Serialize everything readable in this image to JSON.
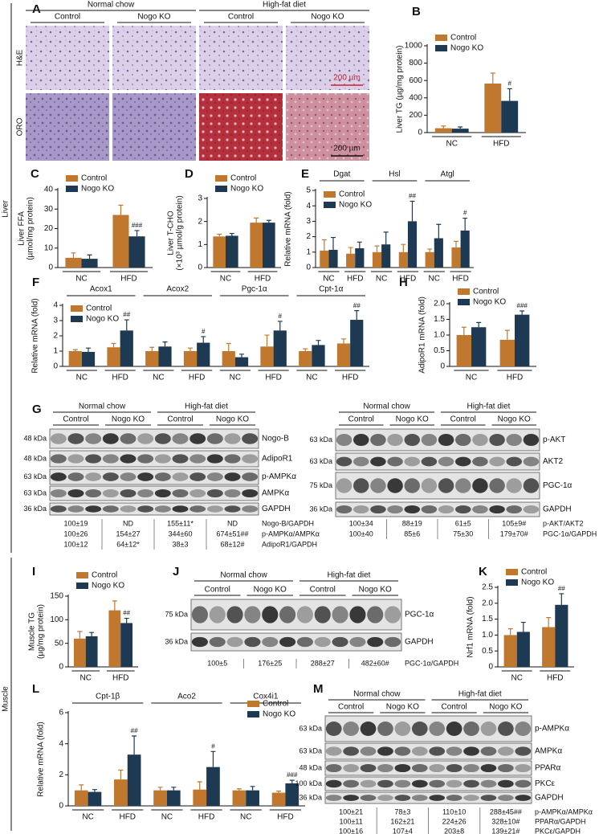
{
  "sections": [
    "Liver",
    "Muscle"
  ],
  "histology": {
    "label": "A",
    "groups": [
      "Normal chow",
      "High-fat diet"
    ],
    "conditions": [
      "Control",
      "Nogo KO",
      "Control",
      "Nogo KO"
    ],
    "rows": [
      "H&E",
      "ORO"
    ],
    "scale_bars": [
      "200 µm",
      "200 µm"
    ]
  },
  "chart_data": [
    {
      "type": "bar",
      "label": "B",
      "ylabel": [
        "Liver TG (µg/mg protein)"
      ],
      "categories": [
        "NC",
        "HFD"
      ],
      "series": [
        {
          "name": "Control",
          "color": "#c0782e",
          "values": [
            50,
            565
          ],
          "errors": [
            25,
            120
          ],
          "significance": [
            null,
            null
          ]
        },
        {
          "name": "Nogo KO",
          "color": "#1e3a52",
          "values": [
            45,
            365
          ],
          "errors": [
            20,
            140
          ],
          "significance": [
            null,
            "#"
          ]
        }
      ],
      "ylim": [
        0,
        1000
      ],
      "yticks": [
        0,
        200,
        400,
        600,
        800,
        1000
      ],
      "legend": "upper left"
    },
    {
      "type": "bar",
      "label": "C",
      "ylabel": [
        "Liver FFA",
        "(µmol/mg protein)"
      ],
      "categories": [
        "NC",
        "HFD"
      ],
      "series": [
        {
          "name": "Control",
          "color": "#c0782e",
          "values": [
            5,
            27
          ],
          "errors": [
            2.5,
            5
          ],
          "significance": [
            null,
            null
          ]
        },
        {
          "name": "Nogo KO",
          "color": "#1e3a52",
          "values": [
            4.5,
            16
          ],
          "errors": [
            2,
            3
          ],
          "significance": [
            null,
            "###"
          ]
        }
      ],
      "ylim": [
        0,
        40
      ],
      "yticks": [
        0,
        10,
        20,
        30,
        40
      ],
      "legend": "upper left"
    },
    {
      "type": "bar",
      "label": "D",
      "ylabel": [
        "Liver T-CHO",
        "(×10³ µmol/g protein)"
      ],
      "categories": [
        "NC",
        "HFD"
      ],
      "series": [
        {
          "name": "Control",
          "color": "#c0782e",
          "values": [
            1.35,
            1.95
          ],
          "errors": [
            0.1,
            0.2
          ],
          "significance": [
            null,
            null
          ]
        },
        {
          "name": "Nogo KO",
          "color": "#1e3a52",
          "values": [
            1.38,
            1.95
          ],
          "errors": [
            0.1,
            0.1
          ],
          "significance": [
            null,
            null
          ]
        }
      ],
      "ylim": [
        0,
        3
      ],
      "yticks": [
        0,
        1,
        2,
        3
      ],
      "legend": "upper left"
    },
    {
      "type": "bar",
      "label": "E",
      "ylabel": [
        "Relative mRNA (fold)"
      ],
      "groups": [
        "Dgat",
        "Hsl",
        "Atgl"
      ],
      "categories": [
        "NC",
        "HFD",
        "NC",
        "HFD",
        "NC",
        "HFD"
      ],
      "series": [
        {
          "name": "Control",
          "color": "#c0782e",
          "values": [
            1.1,
            0.9,
            1.0,
            1.0,
            1.0,
            1.3
          ],
          "errors": [
            0.7,
            0.4,
            0.4,
            0.5,
            0.2,
            0.4
          ],
          "significance": [
            null,
            null,
            null,
            null,
            null,
            null
          ]
        },
        {
          "name": "Nogo KO",
          "color": "#1e3a52",
          "values": [
            1.15,
            1.25,
            1.5,
            3.0,
            1.9,
            2.4
          ],
          "errors": [
            0.8,
            0.4,
            0.8,
            1.3,
            0.9,
            0.8
          ],
          "significance": [
            null,
            null,
            null,
            "##",
            null,
            "#"
          ]
        }
      ],
      "ylim": [
        0,
        5
      ],
      "yticks": [
        0,
        1,
        2,
        3,
        4,
        5
      ],
      "legend": "upper left"
    },
    {
      "type": "bar",
      "label": "F",
      "ylabel": [
        "Relative mRNA (fold)"
      ],
      "groups": [
        "Acox1",
        "Acox2",
        "Pgc-1α",
        "Cpt-1α"
      ],
      "categories": [
        "NC",
        "HFD",
        "NC",
        "HFD",
        "NC",
        "HFD",
        "NC",
        "HFD"
      ],
      "series": [
        {
          "name": "Control",
          "color": "#c0782e",
          "values": [
            1.0,
            1.25,
            1.0,
            1.0,
            1.0,
            1.3,
            1.0,
            1.5
          ],
          "errors": [
            0.1,
            0.25,
            0.25,
            0.2,
            0.5,
            0.75,
            0.15,
            0.3
          ],
          "significance": [
            null,
            null,
            null,
            null,
            null,
            null,
            null,
            null
          ]
        },
        {
          "name": "Nogo KO",
          "color": "#1e3a52",
          "values": [
            0.95,
            2.35,
            1.3,
            1.55,
            0.6,
            2.35,
            1.4,
            3.05
          ],
          "errors": [
            0.25,
            0.7,
            0.3,
            0.4,
            0.2,
            0.6,
            0.3,
            0.6
          ],
          "significance": [
            null,
            "##",
            null,
            "#",
            null,
            "#",
            null,
            "##"
          ]
        }
      ],
      "ylim": [
        0,
        4
      ],
      "yticks": [
        0,
        1,
        2,
        3,
        4
      ],
      "legend": "upper left"
    },
    {
      "type": "bar",
      "label": "H",
      "ylabel": [
        "AdipoR1 mRNA (fold)"
      ],
      "categories": [
        "NC",
        "HFD"
      ],
      "series": [
        {
          "name": "Control",
          "color": "#c0782e",
          "values": [
            1.0,
            0.85
          ],
          "errors": [
            0.25,
            0.3
          ],
          "significance": [
            null,
            null
          ]
        },
        {
          "name": "Nogo KO",
          "color": "#1e3a52",
          "values": [
            1.25,
            1.65
          ],
          "errors": [
            0.15,
            0.12
          ],
          "significance": [
            null,
            "###"
          ]
        }
      ],
      "ylim": [
        0,
        2
      ],
      "yticks": [
        0,
        0.5,
        {
          "value": 1,
          "label": "1.0"
        },
        1.5,
        {
          "value": 2,
          "label": "2.0"
        }
      ],
      "legend": "upper left"
    },
    {
      "type": "bar",
      "label": "I",
      "ylabel": [
        "Muscle TG",
        "(µg/mg protein)"
      ],
      "categories": [
        "NC",
        "HFD"
      ],
      "series": [
        {
          "name": "Control",
          "color": "#c0782e",
          "values": [
            60,
            120
          ],
          "errors": [
            15,
            20
          ],
          "significance": [
            null,
            null
          ]
        },
        {
          "name": "Nogo KO",
          "color": "#1e3a52",
          "values": [
            65,
            93
          ],
          "errors": [
            8,
            10
          ],
          "significance": [
            null,
            "##"
          ]
        }
      ],
      "ylim": [
        0,
        150
      ],
      "yticks": [
        0,
        50,
        100,
        150
      ],
      "legend": "upper left"
    },
    {
      "type": "bar",
      "label": "K",
      "ylabel": [
        "Nrf1 mRNA (fold)"
      ],
      "categories": [
        "NC",
        "HFD"
      ],
      "series": [
        {
          "name": "Control",
          "color": "#c0782e",
          "values": [
            1.0,
            1.25
          ],
          "errors": [
            0.2,
            0.3
          ],
          "significance": [
            null,
            null
          ]
        },
        {
          "name": "Nogo KO",
          "color": "#1e3a52",
          "values": [
            1.1,
            1.95
          ],
          "errors": [
            0.3,
            0.35
          ],
          "significance": [
            null,
            "##"
          ]
        }
      ],
      "ylim": [
        0,
        2.5
      ],
      "yticks": [
        0,
        0.5,
        {
          "value": 1,
          "label": "1.0"
        },
        1.5,
        {
          "value": 2,
          "label": "2.0"
        },
        2.5
      ],
      "legend": "upper left"
    },
    {
      "type": "bar",
      "label": "L",
      "ylabel": [
        "Relative mRNA (fold)"
      ],
      "groups": [
        "Cpt-1β",
        "Aco2",
        "Cox4i1"
      ],
      "categories": [
        "NC",
        "HFD",
        "NC",
        "HFD",
        "NC",
        "HFD"
      ],
      "series": [
        {
          "name": "Control",
          "color": "#c0782e",
          "values": [
            1.0,
            1.7,
            1.0,
            1.05,
            1.0,
            0.85
          ],
          "errors": [
            0.35,
            0.6,
            0.2,
            0.5,
            0.1,
            0.1
          ],
          "significance": [
            null,
            null,
            null,
            null,
            null,
            null
          ]
        },
        {
          "name": "Nogo KO",
          "color": "#1e3a52",
          "values": [
            0.9,
            3.3,
            1.0,
            2.5,
            1.0,
            1.45
          ],
          "errors": [
            0.15,
            1.2,
            0.2,
            1.0,
            0.25,
            0.2
          ],
          "significance": [
            null,
            "##",
            null,
            "#",
            null,
            "###"
          ]
        }
      ],
      "ylim": [
        0,
        6
      ],
      "yticks": [
        0,
        2,
        4,
        6
      ],
      "legend": "upper right"
    }
  ],
  "blots": [
    {
      "label": "G",
      "groups": [
        "Normal chow",
        "High-fat diet"
      ],
      "conditions": [
        "Control",
        "Nogo KO",
        "Control",
        "Nogo KO"
      ],
      "rows": [
        {
          "kda": "48 kDa",
          "name": "Nogo-B"
        },
        {
          "kda": "48 kDa",
          "name": "AdipoR1"
        },
        {
          "kda": "63 kDa",
          "name": "p-AMPKα"
        },
        {
          "kda": "63 kDa",
          "name": "AMPKα"
        },
        {
          "kda": "36 kDa",
          "name": "GAPDH"
        }
      ],
      "quant": [
        {
          "values": [
            "100±19",
            "ND",
            "155±11*",
            "ND"
          ],
          "name": "Nogo-B/GAPDH"
        },
        {
          "values": [
            "100±26",
            "154±27",
            "344±60",
            "674±51##"
          ],
          "name": "p-AMPKα/AMPKα"
        },
        {
          "values": [
            "100±12",
            "64±12*",
            "38±3",
            "68±12#"
          ],
          "name": "AdipoR1/GAPDH"
        }
      ]
    },
    {
      "groups": [
        "Normal chow",
        "High-fat diet"
      ],
      "conditions": [
        "Control",
        "Nogo KO",
        "Control",
        "Nogo KO"
      ],
      "rows": [
        {
          "kda": "63 kDa",
          "name": "p-AKT"
        },
        {
          "kda": "63 kDa",
          "name": "AKT2"
        },
        {
          "kda": "75 kDa",
          "name": "PGC-1α"
        },
        {
          "kda": "36 kDa",
          "name": "GAPDH"
        }
      ],
      "quant": [
        {
          "values": [
            "100±34",
            "88±19",
            "61±5",
            "105±9#"
          ],
          "name": "p-AKT/AKT2"
        },
        {
          "values": [
            "100±40",
            "85±6",
            "75±30",
            "179±70#"
          ],
          "name": "PGC-1α/GAPDH"
        }
      ]
    },
    {
      "label": "J",
      "groups": [
        "Normal chow",
        "High-fat diet"
      ],
      "conditions": [
        "Control",
        "Nogo KO",
        "Control",
        "Nogo KO"
      ],
      "rows": [
        {
          "kda": "75 kDa",
          "name": "PGC-1α"
        },
        {
          "kda": "36 kDa",
          "name": "GAPDH"
        }
      ],
      "quant": [
        {
          "values": [
            "100±5",
            "176±25",
            "288±27",
            "482±60#"
          ],
          "name": "PGC-1α/GAPDH"
        }
      ]
    },
    {
      "label": "M",
      "groups": [
        "Normal chow",
        "High-fat diet"
      ],
      "conditions": [
        "Control",
        "Nogo KO",
        "Control",
        "Nogo KO"
      ],
      "rows": [
        {
          "kda": "63 kDa",
          "name": "p-AMPKα"
        },
        {
          "kda": "63 kDa",
          "name": "AMPKα"
        },
        {
          "kda": "48 kDa",
          "name": "PPARα"
        },
        {
          "kda": "100 kDa",
          "name": "PKCε"
        },
        {
          "kda": "36 kDa",
          "name": "GAPDH"
        }
      ],
      "quant": [
        {
          "values": [
            "100±21",
            "78±3",
            "110±10",
            "288±45##"
          ],
          "name": "p-AMPKα/AMPKα"
        },
        {
          "values": [
            "100±11",
            "162±21",
            "224±26",
            "328±10#"
          ],
          "name": "PPARα/GAPDH"
        },
        {
          "values": [
            "100±16",
            "107±4",
            "203±8",
            "139±21#"
          ],
          "name": "PKCε/GAPDH"
        }
      ]
    }
  ]
}
